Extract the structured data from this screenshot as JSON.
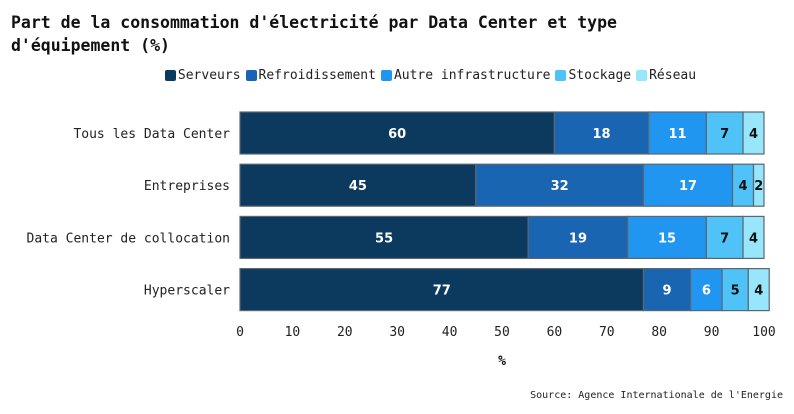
{
  "chart_data": {
    "type": "bar",
    "orientation": "horizontal",
    "stacked": true,
    "title": "Part de la consommation d'électricité par Data Center et type d'équipement (%)",
    "title_lines": [
      "Part de la consommation d'électricité par Data Center et type",
      "d'équipement (%)"
    ],
    "xlabel": "%",
    "ylabel": "",
    "xlim": [
      0,
      100
    ],
    "xticks": [
      "0",
      "10",
      "20",
      "30",
      "40",
      "50",
      "60",
      "70",
      "80",
      "90",
      "100"
    ],
    "legend_position": "top",
    "categories": [
      "Tous les Data Center",
      "Entreprises",
      "Data Center de collocation",
      "Hyperscaler"
    ],
    "series": [
      {
        "name": "Serveurs",
        "color": "#0b3a5e",
        "label_color": "#ffffff",
        "values": [
          60,
          45,
          55,
          77
        ]
      },
      {
        "name": "Refroidissement",
        "color": "#1a65b2",
        "label_color": "#ffffff",
        "values": [
          18,
          32,
          19,
          9
        ]
      },
      {
        "name": "Autre infrastructure",
        "color": "#2196f0",
        "label_color": "#ffffff",
        "values": [
          11,
          17,
          15,
          6
        ]
      },
      {
        "name": "Stockage",
        "color": "#4fc3f7",
        "label_color": "#111111",
        "values": [
          7,
          4,
          7,
          5
        ]
      },
      {
        "name": "Réseau",
        "color": "#97e6fb",
        "label_color": "#111111",
        "values": [
          4,
          2,
          4,
          4
        ]
      }
    ],
    "source": "Source: Agence Internationale de l'Energie"
  }
}
